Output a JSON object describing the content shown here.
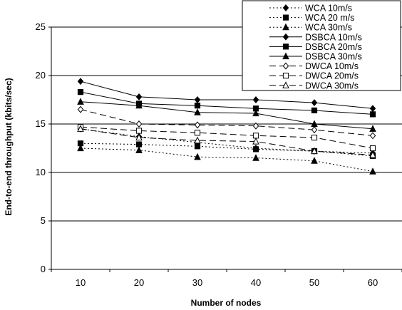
{
  "chart_data": {
    "type": "line",
    "title": "",
    "xlabel": "Number of nodes",
    "ylabel": "End-to-end throughput (kbits/sec)",
    "x": [
      10,
      20,
      30,
      40,
      50,
      60
    ],
    "ylim": [
      0,
      25
    ],
    "yticks": [
      0,
      5,
      10,
      15,
      20,
      25
    ],
    "grid": "horizontal",
    "legend_position": "top-right",
    "series": [
      {
        "name": "WCA 10m/s",
        "values": [
          14.5,
          13.7,
          13.1,
          12.5,
          12.2,
          12.0
        ],
        "marker": "diamond-filled",
        "dash": "dotted",
        "color": "#000000"
      },
      {
        "name": "WCA 20 m/s",
        "values": [
          13.0,
          12.9,
          12.7,
          12.4,
          12.2,
          11.7
        ],
        "marker": "square-filled",
        "dash": "dotted",
        "color": "#000000"
      },
      {
        "name": "WCA 30m/s",
        "values": [
          12.5,
          12.3,
          11.6,
          11.5,
          11.2,
          10.1
        ],
        "marker": "triangle-filled",
        "dash": "dotted",
        "color": "#000000"
      },
      {
        "name": "DSBCA 10m/s",
        "values": [
          19.4,
          17.8,
          17.5,
          17.5,
          17.2,
          16.6
        ],
        "marker": "diamond-filled",
        "dash": "solid",
        "color": "#000000"
      },
      {
        "name": "DSBCA 20m/s",
        "values": [
          18.3,
          17.1,
          16.9,
          16.6,
          16.4,
          16.0
        ],
        "marker": "square-filled",
        "dash": "solid",
        "color": "#000000"
      },
      {
        "name": "DSBCA 30m/s",
        "values": [
          17.3,
          16.9,
          16.2,
          16.1,
          15.0,
          14.5
        ],
        "marker": "triangle-filled",
        "dash": "solid",
        "color": "#000000"
      },
      {
        "name": "DWCA 10m/s",
        "values": [
          16.5,
          15.0,
          14.9,
          14.8,
          14.4,
          13.8
        ],
        "marker": "diamond-open",
        "dash": "longdash",
        "color": "#000000"
      },
      {
        "name": "DWCA 20m/s",
        "values": [
          14.7,
          14.3,
          14.1,
          13.8,
          13.6,
          12.5
        ],
        "marker": "square-open",
        "dash": "longdash",
        "color": "#000000"
      },
      {
        "name": "DWCA 30m/s",
        "values": [
          14.5,
          13.6,
          13.3,
          13.2,
          12.2,
          11.8
        ],
        "marker": "triangle-open",
        "dash": "longdash",
        "color": "#000000"
      }
    ]
  }
}
